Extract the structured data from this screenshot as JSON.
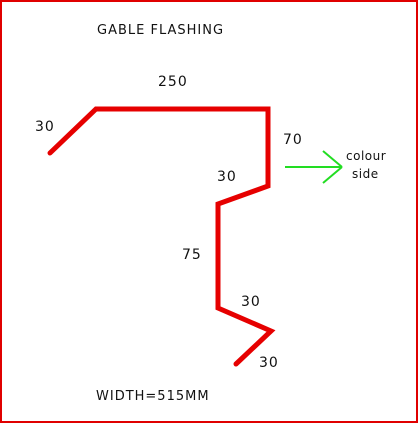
{
  "title": "GABLE FLASHING",
  "width_label": "WIDTH=515MM",
  "dimensions": {
    "top_left_lip": "30",
    "top": "250",
    "right_drop": "70",
    "upper_step": "30",
    "middle_drop": "75",
    "lower_step": "30",
    "bottom_lip": "30"
  },
  "colour_side": {
    "line1": "colour",
    "line2": "side"
  },
  "colors": {
    "flashing": "#e60000",
    "arrow": "#22dd22",
    "border": "#e00000",
    "text": "#111111"
  }
}
